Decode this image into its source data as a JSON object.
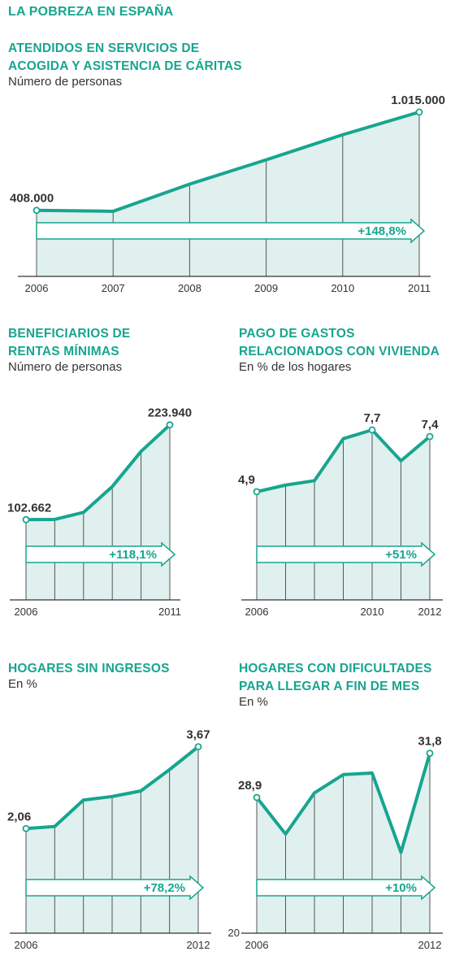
{
  "page": {
    "title": "LA POBREZA EN ESPAÑA"
  },
  "colors": {
    "line": "#17a58f",
    "area": "#dff0ee",
    "divider": "#555555",
    "axis": "#333333"
  },
  "chart_data": [
    {
      "id": "caritas",
      "type": "area",
      "title": "ATENDIDOS EN SERVICIOS DE\nACOGIDA Y ASISTENCIA DE CÁRITAS",
      "subtitle": "Número de personas",
      "x": [
        2006,
        2007,
        2008,
        2009,
        2010,
        2011
      ],
      "y": [
        408000,
        402000,
        570000,
        720000,
        875000,
        1015000
      ],
      "xticks": [
        "2006",
        "2007",
        "2008",
        "2009",
        "2010",
        "2011"
      ],
      "value_labels": [
        {
          "index": 0,
          "text": "408.000"
        },
        {
          "index": 5,
          "text": "1.015.000"
        }
      ],
      "change_label": "+148,8%",
      "ylim": [
        0,
        1190000
      ],
      "ytick_label": ""
    },
    {
      "id": "rentas",
      "type": "area",
      "title": "BENEFICIARIOS DE\nRENTAS MÍNIMAS",
      "subtitle": "Número de personas",
      "x": [
        2006,
        2007,
        2008,
        2009,
        2010,
        2011
      ],
      "y": [
        102662,
        103000,
        112000,
        145000,
        190000,
        223940
      ],
      "xticks": [
        "2006",
        "",
        "",
        "",
        "",
        "2011"
      ],
      "value_labels": [
        {
          "index": 0,
          "text": "102.662"
        },
        {
          "index": 5,
          "text": "223.940"
        }
      ],
      "change_label": "+118,1%",
      "ylim": [
        0,
        260000
      ],
      "ytick_label": ""
    },
    {
      "id": "vivienda",
      "type": "area",
      "title": "PAGO DE GASTOS\nRELACIONADOS CON VIVIENDA",
      "subtitle": "En % de los hogares",
      "x": [
        2006,
        2007,
        2008,
        2009,
        2010,
        2011,
        2012
      ],
      "y": [
        4.9,
        5.2,
        5.4,
        7.3,
        7.7,
        6.3,
        7.4
      ],
      "xticks": [
        "2006",
        "",
        "",
        "",
        "2010",
        "",
        "2012"
      ],
      "value_labels": [
        {
          "index": 0,
          "text": "4,9"
        },
        {
          "index": 4,
          "text": "7,7"
        },
        {
          "index": 6,
          "text": "7,4"
        }
      ],
      "change_label": "+51%",
      "ylim": [
        0,
        9.02
      ],
      "ytick_label": ""
    },
    {
      "id": "sin_ingresos",
      "type": "area",
      "title": "HOGARES SIN INGRESOS",
      "subtitle": "En %",
      "x": [
        2006,
        2007,
        2008,
        2009,
        2010,
        2011,
        2012
      ],
      "y": [
        2.06,
        2.1,
        2.62,
        2.69,
        2.8,
        3.22,
        3.67
      ],
      "xticks": [
        "2006",
        "",
        "",
        "",
        "",
        "",
        "2012"
      ],
      "value_labels": [
        {
          "index": 0,
          "text": "2,06"
        },
        {
          "index": 6,
          "text": "3,67"
        }
      ],
      "change_label": "+78,2%",
      "ylim": [
        0,
        4.4
      ],
      "ytick_label": ""
    },
    {
      "id": "fin_de_mes",
      "type": "area",
      "title": "HOGARES CON DIFICULTADES\nPARA LLEGAR A FIN DE MES",
      "subtitle": "En %",
      "x": [
        2006,
        2007,
        2008,
        2009,
        2010,
        2011,
        2012
      ],
      "y": [
        28.9,
        26.5,
        29.2,
        30.4,
        30.5,
        25.3,
        31.8
      ],
      "xticks": [
        "2006",
        "",
        "",
        "",
        "",
        "",
        "2012"
      ],
      "value_labels": [
        {
          "index": 0,
          "text": "28,9"
        },
        {
          "index": 6,
          "text": "31,8"
        }
      ],
      "change_label": "+10%",
      "ylim": [
        20,
        33.7
      ],
      "ytick_label": "20"
    }
  ]
}
